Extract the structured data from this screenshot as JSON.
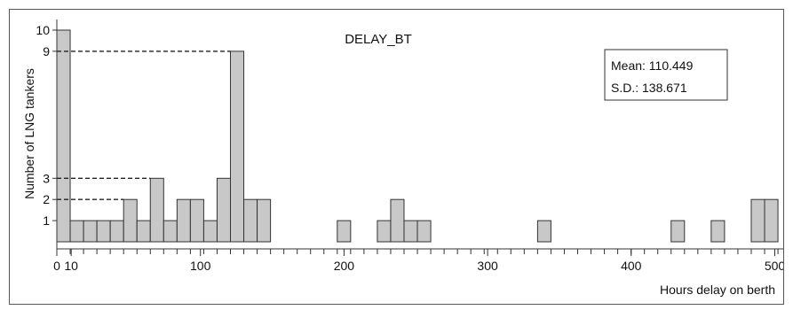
{
  "chart_data": {
    "type": "bar",
    "title": "DELAY_BT",
    "xlabel": "Hours delay on berth",
    "ylabel": "Number of LNG tankers",
    "xlim": [
      0,
      540
    ],
    "ylim": [
      0,
      10.5
    ],
    "bin_width": 9.3,
    "bars": [
      {
        "x": 0,
        "value": 10
      },
      {
        "x": 9.3,
        "value": 1
      },
      {
        "x": 18.6,
        "value": 1
      },
      {
        "x": 27.9,
        "value": 1
      },
      {
        "x": 37.2,
        "value": 1
      },
      {
        "x": 46.5,
        "value": 2
      },
      {
        "x": 55.8,
        "value": 1
      },
      {
        "x": 65.1,
        "value": 3
      },
      {
        "x": 74.4,
        "value": 1
      },
      {
        "x": 83.7,
        "value": 2
      },
      {
        "x": 93.0,
        "value": 2
      },
      {
        "x": 102.3,
        "value": 1
      },
      {
        "x": 111.6,
        "value": 3
      },
      {
        "x": 120.9,
        "value": 9
      },
      {
        "x": 130.2,
        "value": 2
      },
      {
        "x": 139.5,
        "value": 2
      },
      {
        "x": 195.3,
        "value": 1
      },
      {
        "x": 223.2,
        "value": 1
      },
      {
        "x": 232.5,
        "value": 2
      },
      {
        "x": 241.8,
        "value": 1
      },
      {
        "x": 251.1,
        "value": 1
      },
      {
        "x": 334.8,
        "value": 1
      },
      {
        "x": 427.8,
        "value": 1
      },
      {
        "x": 455.7,
        "value": 1
      },
      {
        "x": 483.6,
        "value": 2
      },
      {
        "x": 492.9,
        "value": 2
      }
    ],
    "y_tick_labels": [
      {
        "value": 1,
        "label": "1"
      },
      {
        "value": 2,
        "label": "2"
      },
      {
        "value": 3,
        "label": "3"
      },
      {
        "value": 9,
        "label": "9"
      },
      {
        "value": 10,
        "label": "10"
      }
    ],
    "x_tick_labels": [
      {
        "value": 0,
        "label": "0"
      },
      {
        "value": 10,
        "label": "10"
      },
      {
        "value": 100,
        "label": "100"
      },
      {
        "value": 200,
        "label": "200"
      },
      {
        "value": 300,
        "label": "300"
      },
      {
        "value": 400,
        "label": "400"
      },
      {
        "value": 500,
        "label": "500"
      }
    ],
    "reference_lines": [
      {
        "y": 9,
        "to_x": 120.9
      },
      {
        "y": 3,
        "to_x": 65.1
      },
      {
        "y": 2,
        "to_x": 46.5
      }
    ],
    "stats": {
      "mean": "Mean: 110.449",
      "sd": "S.D.: 138.671"
    },
    "colors": {
      "bar_fill": "#c8c8c8",
      "bar_stroke": "#333333",
      "frame": "#555555"
    }
  }
}
